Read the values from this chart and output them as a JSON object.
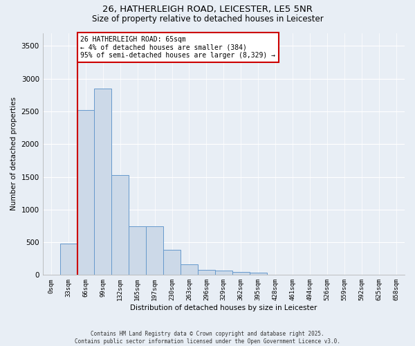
{
  "title_line1": "26, HATHERLEIGH ROAD, LEICESTER, LE5 5NR",
  "title_line2": "Size of property relative to detached houses in Leicester",
  "xlabel": "Distribution of detached houses by size in Leicester",
  "ylabel": "Number of detached properties",
  "bin_labels": [
    "0sqm",
    "33sqm",
    "66sqm",
    "99sqm",
    "132sqm",
    "165sqm",
    "197sqm",
    "230sqm",
    "263sqm",
    "296sqm",
    "329sqm",
    "362sqm",
    "395sqm",
    "428sqm",
    "461sqm",
    "494sqm",
    "526sqm",
    "559sqm",
    "592sqm",
    "625sqm",
    "658sqm"
  ],
  "bar_values": [
    5,
    480,
    2520,
    2850,
    1530,
    740,
    740,
    380,
    160,
    80,
    65,
    45,
    30,
    5,
    2,
    2,
    0,
    0,
    0,
    0,
    0
  ],
  "bar_color": "#ccd9e8",
  "bar_edge_color": "#6699cc",
  "property_line_color": "#cc0000",
  "annotation_text": "26 HATHERLEIGH ROAD: 65sqm\n← 4% of detached houses are smaller (384)\n95% of semi-detached houses are larger (8,329) →",
  "annotation_box_color": "#ffffff",
  "annotation_box_edge_color": "#cc0000",
  "ylim": [
    0,
    3700
  ],
  "yticks": [
    0,
    500,
    1000,
    1500,
    2000,
    2500,
    3000,
    3500
  ],
  "background_color": "#e8eef5",
  "grid_color": "#ffffff",
  "footnote": "Contains HM Land Registry data © Crown copyright and database right 2025.\nContains public sector information licensed under the Open Government Licence v3.0."
}
